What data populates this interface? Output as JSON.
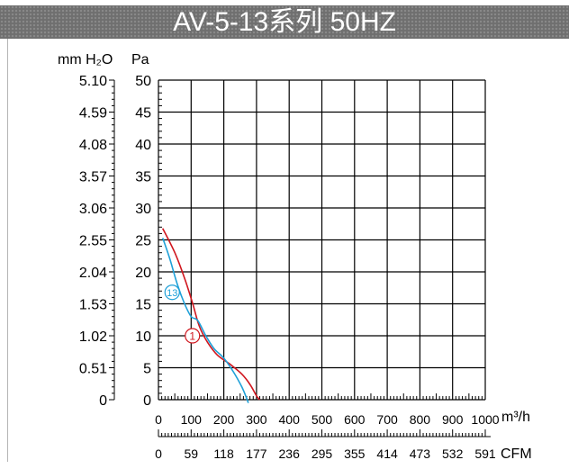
{
  "chart_data": {
    "type": "line",
    "title": "AV-5-13系列 50HZ",
    "y_left_unit": "mm H₂O",
    "y_right_unit": "Pa",
    "y_left_ticks": [
      "0",
      "0.51",
      "1.02",
      "1.53",
      "2.04",
      "2.55",
      "3.06",
      "3.57",
      "4.08",
      "4.59",
      "5.10"
    ],
    "y_ticks": [
      "0",
      "5",
      "10",
      "15",
      "20",
      "25",
      "30",
      "35",
      "40",
      "45",
      "50"
    ],
    "ylim": [
      0,
      50
    ],
    "x_unit": "m³/h",
    "x_ticks": [
      "0",
      "100",
      "200",
      "300",
      "400",
      "500",
      "600",
      "700",
      "800",
      "900",
      "1000"
    ],
    "xlim": [
      0,
      1000
    ],
    "x2_unit": "CFM",
    "x2_ticks": [
      "0",
      "59",
      "118",
      "177",
      "236",
      "295",
      "355",
      "414",
      "473",
      "532",
      "591"
    ],
    "grid": true,
    "series": [
      {
        "name": "1",
        "color": "#d0161e",
        "points": [
          [
            13,
            26.8
          ],
          [
            50,
            23
          ],
          [
            80,
            19
          ],
          [
            105,
            15
          ],
          [
            125,
            11.5
          ],
          [
            150,
            9
          ],
          [
            180,
            7
          ],
          [
            220,
            5.5
          ],
          [
            255,
            4
          ],
          [
            280,
            2.4
          ],
          [
            300,
            0.6
          ],
          [
            310,
            0
          ]
        ]
      },
      {
        "name": "13",
        "color": "#1ea0d8",
        "points": [
          [
            13,
            25.3
          ],
          [
            35,
            22
          ],
          [
            58,
            18
          ],
          [
            80,
            15
          ],
          [
            100,
            13
          ],
          [
            120,
            12.4
          ],
          [
            145,
            10
          ],
          [
            170,
            8
          ],
          [
            200,
            6.5
          ],
          [
            230,
            4.3
          ],
          [
            255,
            2
          ],
          [
            270,
            0.2
          ],
          [
            275,
            -0.5
          ]
        ]
      }
    ]
  }
}
